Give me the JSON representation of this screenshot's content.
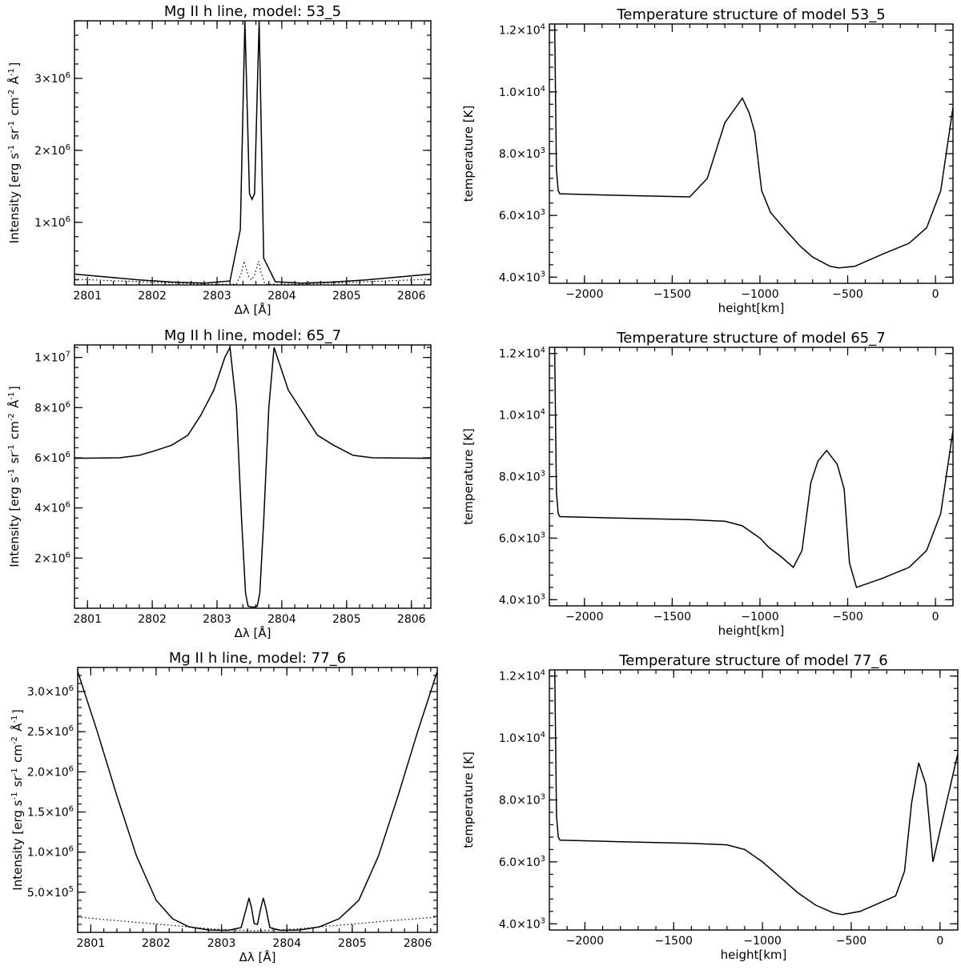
{
  "chart_data": [
    {
      "type": "line",
      "title": "Mg II h line, model: 53_5",
      "xlabel": "Δλ [Å]",
      "ylabel": "Intensity [erg s^-1 sr^-1 cm^-2 Å^-1]",
      "xlim": [
        2800.8,
        2806.3
      ],
      "ylim": [
        130000,
        3800000
      ],
      "xticks": [
        2801,
        2802,
        2803,
        2804,
        2805,
        2806
      ],
      "xtick_labels": [
        "2801",
        "2802",
        "2803",
        "2804",
        "2805",
        "2806"
      ],
      "yticks": [
        1000000,
        2000000,
        3000000
      ],
      "ytick_labels": [
        {
          "m": "1",
          "e": "6"
        },
        {
          "m": "2",
          "e": "6"
        },
        {
          "m": "3",
          "e": "6"
        }
      ],
      "series": [
        {
          "style": "solid",
          "x": [
            2800.8,
            2801.3,
            2801.8,
            2802.3,
            2802.8,
            2803.2,
            2803.36,
            2803.43,
            2803.46,
            2803.5,
            2803.54,
            2803.58,
            2803.62,
            2803.65,
            2803.72,
            2803.9,
            2804.3,
            2804.8,
            2805.3,
            2805.8,
            2806.3
          ],
          "y": [
            280000,
            240000,
            200000,
            170000,
            155000,
            185000,
            900000,
            3800000,
            2800000,
            1400000,
            1320000,
            1400000,
            2800000,
            3800000,
            500000,
            175000,
            155000,
            170000,
            200000,
            240000,
            280000
          ]
        },
        {
          "style": "dotted",
          "x": [
            2800.8,
            2801.5,
            2802.2,
            2802.9,
            2803.3,
            2803.38,
            2803.42,
            2803.48,
            2803.53,
            2803.58,
            2803.64,
            2803.68,
            2803.74,
            2804.2,
            2804.9,
            2805.6,
            2806.3
          ],
          "y": [
            210000,
            185000,
            160000,
            140000,
            140000,
            300000,
            460000,
            260000,
            200000,
            260000,
            460000,
            300000,
            140000,
            140000,
            160000,
            185000,
            210000
          ]
        }
      ]
    },
    {
      "type": "line",
      "title": "Temperature structure of model 53_5",
      "xlabel": "height[km]",
      "ylabel": "temperature [K]",
      "xlim": [
        -2200,
        100
      ],
      "ylim": [
        3800,
        12200
      ],
      "xticks": [
        -2000,
        -1500,
        -1000,
        -500,
        0
      ],
      "xtick_labels": [
        "−2000",
        "−1500",
        "−1000",
        "−500",
        "0"
      ],
      "yticks": [
        4000,
        6000,
        8000,
        10000,
        12000
      ],
      "ytick_labels": [
        {
          "m": "4.0",
          "e": "3"
        },
        {
          "m": "6.0",
          "e": "3"
        },
        {
          "m": "8.0",
          "e": "3"
        },
        {
          "m": "1.0",
          "e": "4"
        },
        {
          "m": "1.2",
          "e": "4"
        }
      ],
      "series": [
        {
          "style": "solid",
          "x": [
            -2170,
            -2160,
            -2150,
            -2140,
            -1800,
            -1400,
            -1300,
            -1200,
            -1150,
            -1100,
            -1060,
            -1030,
            -990,
            -940,
            -850,
            -770,
            -700,
            -600,
            -550,
            -460,
            -300,
            -150,
            -50,
            30,
            100
          ],
          "y": [
            12200,
            7500,
            6800,
            6700,
            6650,
            6600,
            7200,
            9000,
            9400,
            9800,
            9300,
            8700,
            6800,
            6100,
            5500,
            5000,
            4650,
            4350,
            4300,
            4350,
            4750,
            5100,
            5600,
            6800,
            9500
          ]
        }
      ]
    },
    {
      "type": "line",
      "title": "Mg II h line, model: 65_7",
      "xlabel": "Δλ [Å]",
      "ylabel": "Intensity [erg s^-1 sr^-1 cm^-2 Å^-1]",
      "xlim": [
        2800.8,
        2806.3
      ],
      "ylim": [
        0,
        10500000
      ],
      "xticks": [
        2801,
        2802,
        2803,
        2804,
        2805,
        2806
      ],
      "xtick_labels": [
        "2801",
        "2802",
        "2803",
        "2804",
        "2805",
        "2806"
      ],
      "yticks": [
        2000000,
        4000000,
        6000000,
        8000000,
        10000000
      ],
      "ytick_labels": [
        {
          "m": "2",
          "e": "6"
        },
        {
          "m": "4",
          "e": "6"
        },
        {
          "m": "6",
          "e": "6"
        },
        {
          "m": "8",
          "e": "6"
        },
        {
          "m": "1",
          "e": "7"
        }
      ],
      "series": [
        {
          "style": "solid",
          "x": [
            2800.8,
            2801.5,
            2801.8,
            2802.0,
            2802.3,
            2802.55,
            2802.75,
            2802.95,
            2803.12,
            2803.2,
            2803.3,
            2803.38,
            2803.44,
            2803.48,
            2803.55,
            2803.62,
            2803.66,
            2803.72,
            2803.8,
            2803.88,
            2804.1,
            2804.35,
            2804.55,
            2804.8,
            2805.1,
            2805.4,
            2806.3
          ],
          "y": [
            5980000,
            6000000,
            6100000,
            6250000,
            6500000,
            6900000,
            7700000,
            8700000,
            10000000,
            10400000,
            8000000,
            3500000,
            600000,
            80000,
            40000,
            80000,
            600000,
            3500000,
            8000000,
            10400000,
            8700000,
            7700000,
            6900000,
            6500000,
            6100000,
            6000000,
            5980000
          ]
        }
      ]
    },
    {
      "type": "line",
      "title": "Temperature structure of model 65_7",
      "xlabel": "height[km]",
      "ylabel": "temperature [K]",
      "xlim": [
        -2200,
        100
      ],
      "ylim": [
        3800,
        12200
      ],
      "xticks": [
        -2000,
        -1500,
        -1000,
        -500,
        0
      ],
      "xtick_labels": [
        "−2000",
        "−1500",
        "−1000",
        "−500",
        "0"
      ],
      "yticks": [
        4000,
        6000,
        8000,
        10000,
        12000
      ],
      "ytick_labels": [
        {
          "m": "4.0",
          "e": "3"
        },
        {
          "m": "6.0",
          "e": "3"
        },
        {
          "m": "8.0",
          "e": "3"
        },
        {
          "m": "1.0",
          "e": "4"
        },
        {
          "m": "1.2",
          "e": "4"
        }
      ],
      "series": [
        {
          "style": "solid",
          "x": [
            -2170,
            -2160,
            -2150,
            -2140,
            -1800,
            -1400,
            -1200,
            -1100,
            -1000,
            -950,
            -880,
            -810,
            -760,
            -710,
            -670,
            -620,
            -560,
            -520,
            -490,
            -450,
            -300,
            -150,
            -50,
            30,
            100
          ],
          "y": [
            12200,
            7500,
            6800,
            6700,
            6650,
            6600,
            6550,
            6400,
            6000,
            5700,
            5400,
            5050,
            5600,
            7800,
            8500,
            8850,
            8400,
            7600,
            5200,
            4400,
            4700,
            5050,
            5600,
            6800,
            9500
          ]
        }
      ]
    },
    {
      "type": "line",
      "title": "Mg II h line, model: 77_6",
      "xlabel": "Δλ [Å]",
      "ylabel": "Intensity [erg s^-1 sr^-1 cm^-2 Å^-1]",
      "xlim": [
        2800.8,
        2806.3
      ],
      "ylim": [
        0,
        3300000
      ],
      "xticks": [
        2801,
        2802,
        2803,
        2804,
        2805,
        2806
      ],
      "xtick_labels": [
        "2801",
        "2802",
        "2803",
        "2804",
        "2805",
        "2806"
      ],
      "yticks": [
        500000,
        1000000,
        1500000,
        2000000,
        2500000,
        3000000
      ],
      "ytick_labels": [
        {
          "m": "5.0",
          "e": "5"
        },
        {
          "m": "1.0",
          "e": "6"
        },
        {
          "m": "1.5",
          "e": "6"
        },
        {
          "m": "2.0",
          "e": "6"
        },
        {
          "m": "2.5",
          "e": "6"
        },
        {
          "m": "3.0",
          "e": "6"
        }
      ],
      "series": [
        {
          "style": "solid",
          "x": [
            2800.8,
            2801.1,
            2801.4,
            2801.7,
            2802.0,
            2802.25,
            2802.5,
            2802.8,
            2803.1,
            2803.3,
            2803.38,
            2803.42,
            2803.46,
            2803.5,
            2803.55,
            2803.6,
            2803.64,
            2803.68,
            2803.74,
            2803.9,
            2804.2,
            2804.5,
            2804.8,
            2805.1,
            2805.4,
            2805.7,
            2806.0,
            2806.3
          ],
          "y": [
            3250000,
            2500000,
            1700000,
            950000,
            400000,
            170000,
            70000,
            30000,
            25000,
            60000,
            300000,
            430000,
            300000,
            110000,
            100000,
            300000,
            430000,
            300000,
            60000,
            25000,
            30000,
            70000,
            170000,
            400000,
            950000,
            1700000,
            2500000,
            3250000
          ]
        },
        {
          "style": "dotted",
          "x": [
            2800.8,
            2801.5,
            2802.2,
            2802.9,
            2803.5,
            2804.1,
            2804.8,
            2805.5,
            2806.3
          ],
          "y": [
            190000,
            140000,
            90000,
            40000,
            20000,
            40000,
            90000,
            140000,
            190000
          ]
        }
      ]
    },
    {
      "type": "line",
      "title": "Temperature structure of model 77_6",
      "xlabel": "height[km]",
      "ylabel": "temperature [K]",
      "xlim": [
        -2200,
        100
      ],
      "ylim": [
        3800,
        12200
      ],
      "xticks": [
        -2000,
        -1500,
        -1000,
        -500,
        0
      ],
      "xtick_labels": [
        "−2000",
        "−1500",
        "−1000",
        "−500",
        "0"
      ],
      "yticks": [
        4000,
        6000,
        8000,
        10000,
        12000
      ],
      "ytick_labels": [
        {
          "m": "4.0",
          "e": "3"
        },
        {
          "m": "6.0",
          "e": "3"
        },
        {
          "m": "8.0",
          "e": "3"
        },
        {
          "m": "1.0",
          "e": "4"
        },
        {
          "m": "1.2",
          "e": "4"
        }
      ],
      "series": [
        {
          "style": "solid",
          "x": [
            -2170,
            -2160,
            -2150,
            -2140,
            -1800,
            -1400,
            -1200,
            -1100,
            -1000,
            -900,
            -800,
            -700,
            -600,
            -550,
            -450,
            -250,
            -200,
            -160,
            -120,
            -80,
            -40,
            -20,
            0,
            40,
            100
          ],
          "y": [
            12200,
            7500,
            6800,
            6700,
            6650,
            6600,
            6550,
            6400,
            6000,
            5500,
            5000,
            4600,
            4350,
            4300,
            4400,
            4900,
            5700,
            7900,
            9200,
            8500,
            6000,
            6500,
            7000,
            8000,
            9500
          ]
        }
      ]
    }
  ]
}
